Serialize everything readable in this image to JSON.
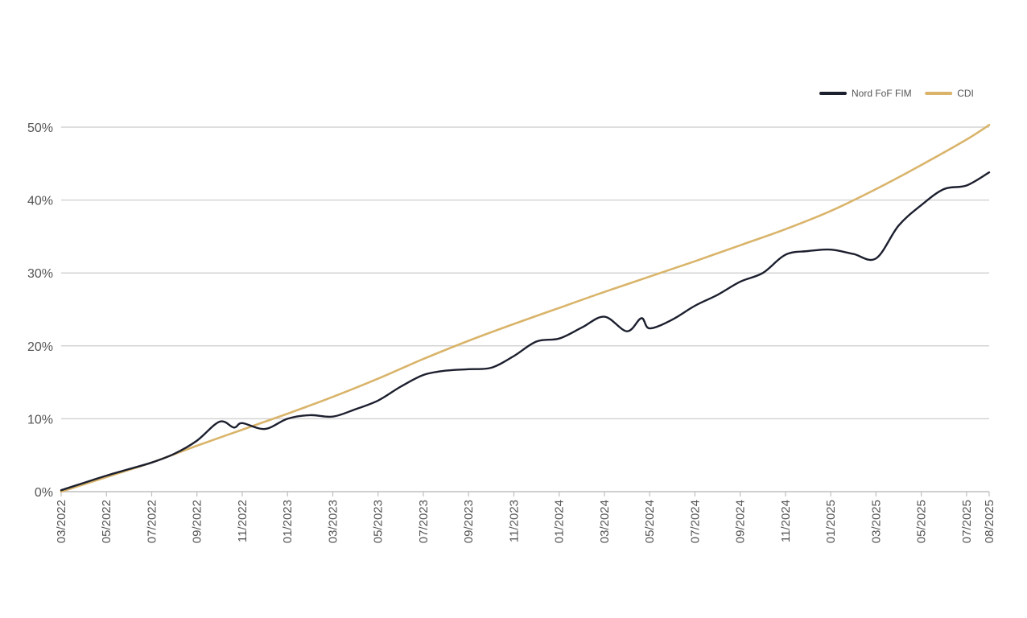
{
  "chart_data": {
    "type": "line",
    "title": "",
    "xlabel": "",
    "ylabel": "",
    "y_unit": "%",
    "ylim": [
      0,
      50
    ],
    "y_ticks": [
      0,
      10,
      20,
      30,
      40,
      50
    ],
    "y_tick_labels": [
      "0%",
      "10%",
      "20%",
      "30%",
      "40%",
      "50%"
    ],
    "x_range": [
      "2022-03",
      "2025-08"
    ],
    "x_tick_labels": [
      "03/2022",
      "05/2022",
      "07/2022",
      "09/2022",
      "11/2022",
      "01/2023",
      "03/2023",
      "05/2023",
      "07/2023",
      "09/2023",
      "11/2023",
      "01/2024",
      "03/2024",
      "05/2024",
      "07/2024",
      "09/2024",
      "11/2024",
      "01/2025",
      "03/2025",
      "05/2025",
      "07/2025",
      "08/2025"
    ],
    "grid": true,
    "legend_position": "top-right",
    "series": [
      {
        "name": "Nord FoF FIM",
        "color": "#1c1f2e",
        "points": [
          [
            "2022-03",
            0.2
          ],
          [
            "2022-04",
            1.2
          ],
          [
            "2022-05",
            2.2
          ],
          [
            "2022-06",
            3.1
          ],
          [
            "2022-07",
            4.0
          ],
          [
            "2022-08",
            5.2
          ],
          [
            "2022-09",
            7.0
          ],
          [
            "2022-10",
            9.6
          ],
          [
            "2022-10-20",
            8.8
          ],
          [
            "2022-11",
            9.4
          ],
          [
            "2022-12",
            8.6
          ],
          [
            "2023-01",
            10.0
          ],
          [
            "2023-02",
            10.5
          ],
          [
            "2023-03",
            10.3
          ],
          [
            "2023-04",
            11.3
          ],
          [
            "2023-05",
            12.5
          ],
          [
            "2023-06",
            14.4
          ],
          [
            "2023-07",
            16.0
          ],
          [
            "2023-08",
            16.6
          ],
          [
            "2023-09",
            16.8
          ],
          [
            "2023-10",
            17.0
          ],
          [
            "2023-11",
            18.6
          ],
          [
            "2023-12",
            20.6
          ],
          [
            "2024-01",
            21.0
          ],
          [
            "2024-02",
            22.5
          ],
          [
            "2024-03",
            24.0
          ],
          [
            "2024-04",
            22.0
          ],
          [
            "2024-04-20",
            23.8
          ],
          [
            "2024-05",
            22.4
          ],
          [
            "2024-06",
            23.6
          ],
          [
            "2024-07",
            25.5
          ],
          [
            "2024-08",
            27.0
          ],
          [
            "2024-09",
            28.8
          ],
          [
            "2024-10",
            30.0
          ],
          [
            "2024-11",
            32.5
          ],
          [
            "2024-12",
            33.0
          ],
          [
            "2025-01",
            33.2
          ],
          [
            "2025-02",
            32.6
          ],
          [
            "2025-03",
            32.0
          ],
          [
            "2025-04",
            36.5
          ],
          [
            "2025-05",
            39.3
          ],
          [
            "2025-06",
            41.5
          ],
          [
            "2025-07",
            42.0
          ],
          [
            "2025-08",
            43.8
          ]
        ]
      },
      {
        "name": "CDI",
        "color": "#d9b46a",
        "points": [
          [
            "2022-03",
            0.0
          ],
          [
            "2022-05",
            2.0
          ],
          [
            "2022-07",
            4.0
          ],
          [
            "2022-09",
            6.3
          ],
          [
            "2022-11",
            8.5
          ],
          [
            "2023-01",
            10.7
          ],
          [
            "2023-03",
            13.0
          ],
          [
            "2023-05",
            15.5
          ],
          [
            "2023-07",
            18.2
          ],
          [
            "2023-09",
            20.7
          ],
          [
            "2023-11",
            23.0
          ],
          [
            "2024-01",
            25.2
          ],
          [
            "2024-03",
            27.4
          ],
          [
            "2024-05",
            29.5
          ],
          [
            "2024-07",
            31.6
          ],
          [
            "2024-09",
            33.8
          ],
          [
            "2024-11",
            36.0
          ],
          [
            "2025-01",
            38.5
          ],
          [
            "2025-03",
            41.5
          ],
          [
            "2025-05",
            44.8
          ],
          [
            "2025-07",
            48.3
          ],
          [
            "2025-08",
            50.3
          ]
        ]
      }
    ]
  }
}
